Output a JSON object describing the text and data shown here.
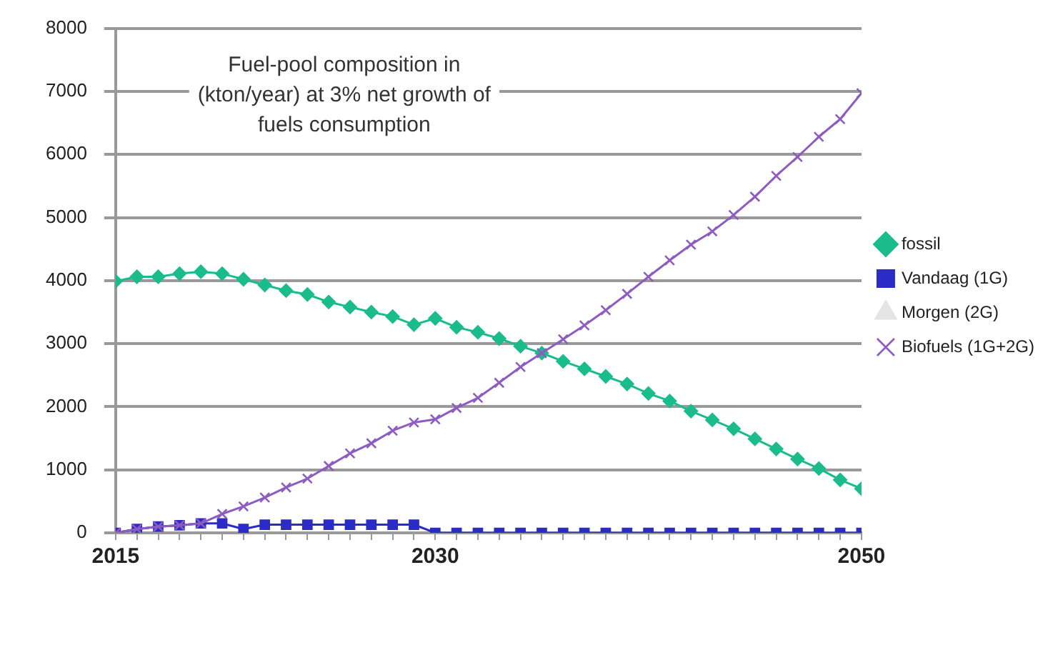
{
  "chart_data": {
    "type": "line",
    "title": "Fuel-pool composition  in (kton/year) at 3% net growth of fuels consumption",
    "x": [
      2015,
      2016,
      2017,
      2018,
      2019,
      2020,
      2021,
      2022,
      2023,
      2024,
      2025,
      2026,
      2027,
      2028,
      2029,
      2030,
      2031,
      2032,
      2033,
      2034,
      2035,
      2036,
      2037,
      2038,
      2039,
      2040,
      2041,
      2042,
      2043,
      2044,
      2045,
      2046,
      2047,
      2048,
      2049,
      2050
    ],
    "series": [
      {
        "name": "fossil",
        "color": "#1abc8c",
        "marker": "diamond",
        "values": [
          3990,
          4060,
          4060,
          4110,
          4140,
          4110,
          4020,
          3930,
          3840,
          3780,
          3660,
          3580,
          3500,
          3430,
          3300,
          3400,
          3260,
          3180,
          3080,
          2960,
          2850,
          2720,
          2600,
          2480,
          2360,
          2210,
          2090,
          1930,
          1790,
          1650,
          1490,
          1330,
          1170,
          1020,
          840,
          700
        ]
      },
      {
        "name": "Vandaag (1G)",
        "color": "#2b2bc8",
        "marker": "square",
        "values": [
          0,
          60,
          100,
          120,
          150,
          150,
          60,
          130,
          130,
          130,
          130,
          130,
          130,
          130,
          130,
          0,
          0,
          0,
          0,
          0,
          0,
          0,
          0,
          0,
          0,
          0,
          0,
          0,
          0,
          0,
          0,
          0,
          0,
          0,
          0,
          0
        ]
      },
      {
        "name": "Morgen (2G)",
        "color": "#e4e4e4",
        "marker": "triangle",
        "values": [
          null,
          null,
          null,
          null,
          null,
          null,
          null,
          null,
          null,
          null,
          null,
          null,
          null,
          null,
          null,
          null,
          null,
          null,
          null,
          null,
          null,
          null,
          null,
          null,
          null,
          null,
          null,
          null,
          null,
          null,
          null,
          null,
          null,
          null,
          null,
          null
        ]
      },
      {
        "name": "Biofuels (1G+2G)",
        "color": "#8e5cc0",
        "marker": "cross",
        "values": [
          0,
          60,
          100,
          120,
          150,
          300,
          420,
          560,
          720,
          860,
          1060,
          1260,
          1420,
          1620,
          1750,
          1800,
          1980,
          2140,
          2380,
          2630,
          2850,
          3070,
          3290,
          3530,
          3790,
          4060,
          4320,
          4570,
          4780,
          5040,
          5330,
          5660,
          5960,
          6280,
          6560,
          6970
        ]
      }
    ],
    "xlim": [
      2015,
      2050
    ],
    "xticks": [
      2015,
      {
        "value": 2016,
        "label": null
      },
      {
        "value": 2017,
        "label": null
      },
      {
        "value": 2018,
        "label": null
      },
      {
        "value": 2019,
        "label": null
      },
      {
        "value": 2020,
        "label": null
      },
      {
        "value": 2021,
        "label": null
      },
      {
        "value": 2022,
        "label": null
      },
      {
        "value": 2023,
        "label": null
      },
      {
        "value": 2024,
        "label": null
      },
      {
        "value": 2025,
        "label": null
      },
      {
        "value": 2026,
        "label": null
      },
      {
        "value": 2027,
        "label": null
      },
      {
        "value": 2028,
        "label": null
      },
      {
        "value": 2029,
        "label": null
      },
      2030,
      {
        "value": 2031,
        "label": null
      },
      {
        "value": 2032,
        "label": null
      },
      {
        "value": 2033,
        "label": null
      },
      {
        "value": 2034,
        "label": null
      },
      {
        "value": 2035,
        "label": null
      },
      {
        "value": 2036,
        "label": null
      },
      {
        "value": 2037,
        "label": null
      },
      {
        "value": 2038,
        "label": null
      },
      {
        "value": 2039,
        "label": null
      },
      {
        "value": 2040,
        "label": null
      },
      {
        "value": 2041,
        "label": null
      },
      {
        "value": 2042,
        "label": null
      },
      {
        "value": 2043,
        "label": null
      },
      {
        "value": 2044,
        "label": null
      },
      {
        "value": 2045,
        "label": null
      },
      {
        "value": 2046,
        "label": null
      },
      {
        "value": 2047,
        "label": null
      },
      {
        "value": 2048,
        "label": null
      },
      {
        "value": 2049,
        "label": null
      },
      2050
    ],
    "ylim": [
      0,
      8000
    ],
    "yticks": [
      0,
      1000,
      2000,
      3000,
      4000,
      5000,
      6000,
      7000,
      8000
    ],
    "grid": "y",
    "legend": "right"
  }
}
